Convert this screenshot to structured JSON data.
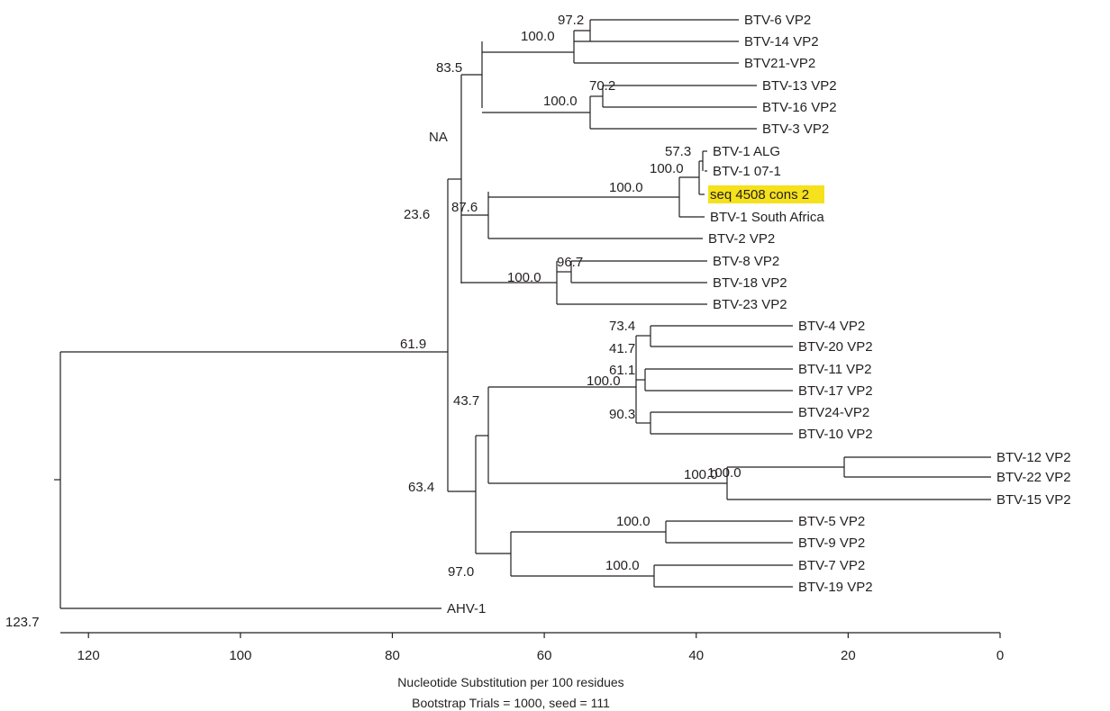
{
  "tree": {
    "leaves": [
      {
        "id": "btv6",
        "label": "BTV-6 VP2"
      },
      {
        "id": "btv14",
        "label": "BTV-14 VP2"
      },
      {
        "id": "btv21",
        "label": "BTV21-VP2"
      },
      {
        "id": "btv13",
        "label": "BTV-13 VP2"
      },
      {
        "id": "btv16",
        "label": "BTV-16 VP2"
      },
      {
        "id": "btv3",
        "label": "BTV-3 VP2"
      },
      {
        "id": "btv1alg",
        "label": "BTV-1 ALG"
      },
      {
        "id": "btv1071",
        "label": "BTV-1 07-1"
      },
      {
        "id": "seq4508",
        "label": "seq 4508 cons 2",
        "highlight": "#f5e11c"
      },
      {
        "id": "btv1sa",
        "label": "BTV-1 South Africa"
      },
      {
        "id": "btv2",
        "label": "BTV-2 VP2"
      },
      {
        "id": "btv8",
        "label": "BTV-8 VP2"
      },
      {
        "id": "btv18",
        "label": "BTV-18 VP2"
      },
      {
        "id": "btv23",
        "label": "BTV-23 VP2"
      },
      {
        "id": "btv4",
        "label": "BTV-4 VP2"
      },
      {
        "id": "btv20",
        "label": "BTV-20 VP2"
      },
      {
        "id": "btv11",
        "label": "BTV-11 VP2"
      },
      {
        "id": "btv17",
        "label": "BTV-17 VP2"
      },
      {
        "id": "btv24",
        "label": "BTV24-VP2"
      },
      {
        "id": "btv10",
        "label": "BTV-10 VP2"
      },
      {
        "id": "btv12",
        "label": "BTV-12 VP2"
      },
      {
        "id": "btv22",
        "label": "BTV-22 VP2"
      },
      {
        "id": "btv15",
        "label": "BTV-15 VP2"
      },
      {
        "id": "btv5",
        "label": "BTV-5 VP2"
      },
      {
        "id": "btv9",
        "label": "BTV-9 VP2"
      },
      {
        "id": "btv7",
        "label": "BTV-7 VP2"
      },
      {
        "id": "btv19",
        "label": "BTV-19 VP2"
      },
      {
        "id": "ahv1",
        "label": "AHV-1"
      }
    ],
    "bootstrap_values": [
      "97.2",
      "100.0",
      "70.2",
      "100.0",
      "83.5",
      "NA",
      "57.3",
      "100.0",
      "100.0",
      "87.6",
      "23.6",
      "96.7",
      "100.0",
      "61.9",
      "73.4",
      "41.7",
      "61.1",
      "100.0",
      "90.3",
      "43.7",
      "100.0",
      "100.0",
      "63.4",
      "100.0",
      "100.0",
      "97.0"
    ],
    "root_value": "123.7"
  },
  "axis": {
    "ticks": [
      "120",
      "100",
      "80",
      "60",
      "40",
      "20",
      "0"
    ],
    "title": "Nucleotide Substitution per 100 residues",
    "subtitle": "Bootstrap Trials = 1000, seed = 111"
  }
}
